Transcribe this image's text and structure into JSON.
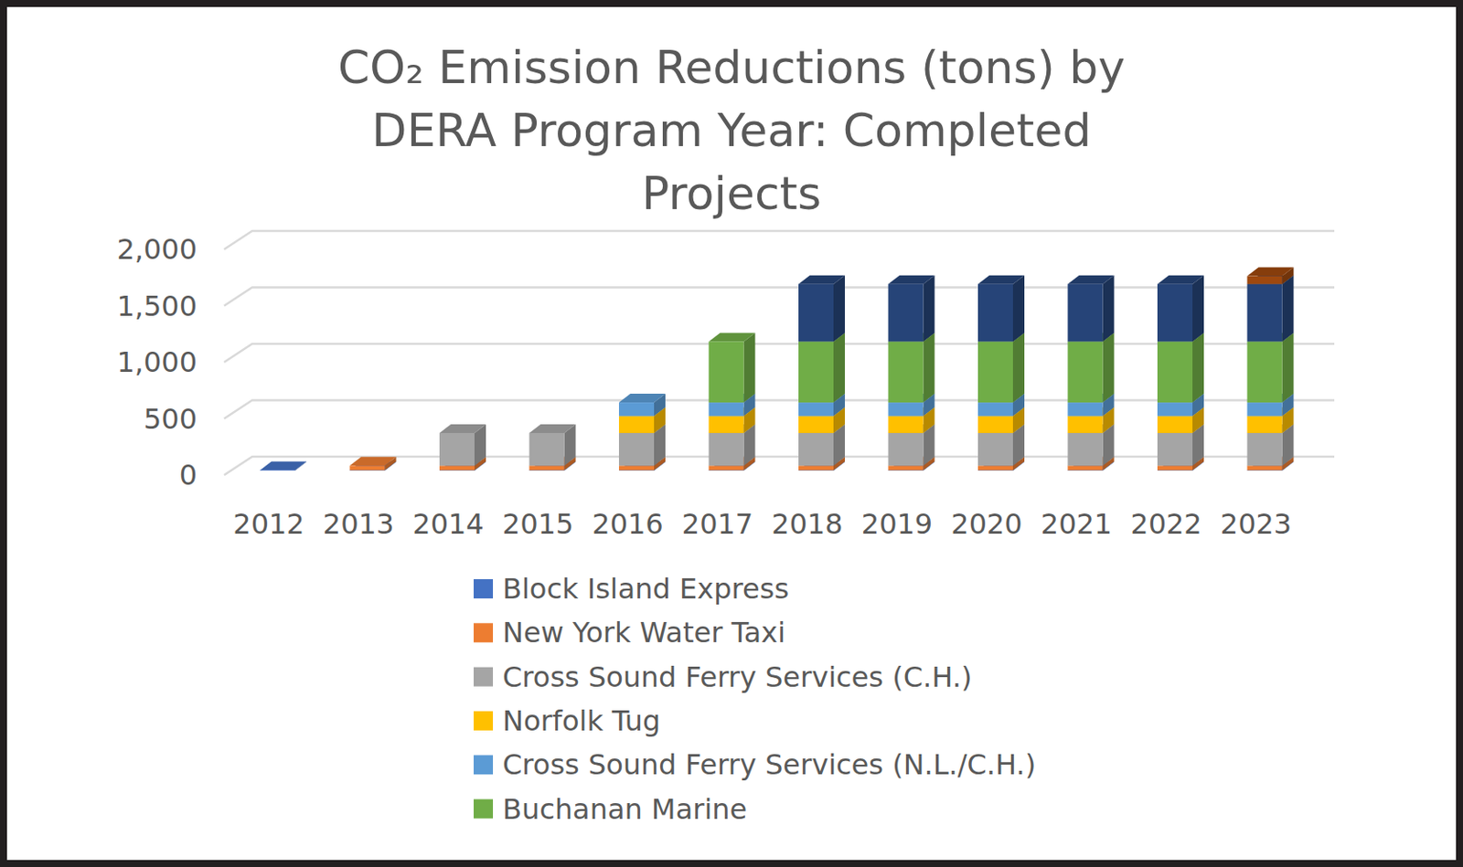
{
  "chart_data": {
    "type": "bar",
    "stacked": true,
    "grid": true,
    "legend": "bottom",
    "title": "CO₂ Emission Reductions (tons) by DERA Program Year: Completed Projects",
    "categories": [
      "2012",
      "2013",
      "2014",
      "2015",
      "2016",
      "2017",
      "2018",
      "2019",
      "2020",
      "2021",
      "2022",
      "2023"
    ],
    "ylim": [
      0,
      2000
    ],
    "yticks": [
      0,
      500,
      {
        "value": 1000,
        "label": "1,000"
      },
      {
        "value": 1500,
        "label": "1,500"
      },
      {
        "value": 2000,
        "label": "2,000"
      }
    ],
    "series": [
      {
        "name": "Block Island Express",
        "color": "#4472c4",
        "values": [
          4,
          4,
          4,
          4,
          4,
          4,
          4,
          4,
          4,
          4,
          4,
          4
        ]
      },
      {
        "name": "New York Water Taxi",
        "color": "#ed7d31",
        "values": [
          0,
          40,
          40,
          40,
          40,
          40,
          40,
          40,
          40,
          40,
          40,
          40
        ]
      },
      {
        "name": "Cross Sound Ferry Services (C.H.)",
        "color": "#a5a5a5",
        "values": [
          0,
          0,
          290,
          290,
          290,
          290,
          290,
          290,
          290,
          290,
          290,
          290
        ]
      },
      {
        "name": "Norfolk Tug",
        "color": "#ffc000",
        "values": [
          0,
          0,
          0,
          0,
          150,
          150,
          150,
          150,
          150,
          150,
          150,
          150
        ]
      },
      {
        "name": "Cross Sound Ferry Services (N.L./C.H.)",
        "color": "#5b9bd5",
        "values": [
          0,
          0,
          0,
          0,
          120,
          120,
          120,
          120,
          120,
          120,
          120,
          120
        ]
      },
      {
        "name": "Buchanan Marine",
        "color": "#70ad47",
        "values": [
          0,
          0,
          0,
          0,
          0,
          540,
          540,
          540,
          540,
          540,
          540,
          540
        ]
      },
      {
        "name": null,
        "color": "#264478",
        "values": [
          0,
          0,
          0,
          0,
          0,
          0,
          510,
          510,
          510,
          510,
          510,
          510
        ]
      },
      {
        "name": null,
        "color": "#9e480e",
        "values": [
          0,
          0,
          0,
          0,
          0,
          0,
          0,
          0,
          0,
          0,
          0,
          70
        ]
      }
    ]
  }
}
